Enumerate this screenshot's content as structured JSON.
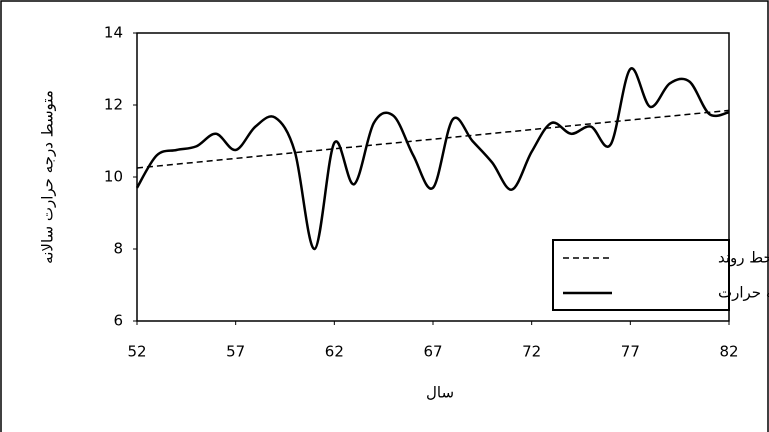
{
  "chart_data": {
    "type": "line",
    "x_label": "سال",
    "y_label": "متوسط درجه حرارت سالانه",
    "xlim": [
      52,
      82
    ],
    "ylim": [
      6,
      14
    ],
    "xticks": [
      52,
      57,
      62,
      67,
      72,
      77,
      82
    ],
    "yticks": [
      6,
      8,
      10,
      12,
      14
    ],
    "legend": "lower right",
    "series": [
      {
        "name": "خط روند",
        "color": "#000000",
        "style": "dashed",
        "x": [
          52,
          82
        ],
        "values": [
          10.25,
          11.85
        ]
      },
      {
        "name": "درجه حرارت",
        "color": "#000000",
        "style": "solid",
        "smooth": true,
        "x": [
          52,
          53,
          54,
          55,
          56,
          57,
          58,
          59,
          60,
          61,
          62,
          63,
          64,
          65,
          66,
          67,
          68,
          69,
          70,
          71,
          72,
          73,
          74,
          75,
          76,
          77,
          78,
          79,
          80,
          81,
          82
        ],
        "values": [
          9.7,
          10.6,
          10.75,
          10.85,
          11.2,
          10.75,
          11.4,
          11.65,
          10.7,
          8.0,
          10.95,
          9.8,
          11.5,
          11.7,
          10.6,
          9.7,
          11.6,
          11.0,
          10.4,
          9.65,
          10.7,
          11.5,
          11.2,
          11.4,
          10.9,
          13.0,
          11.95,
          12.6,
          12.65,
          11.75,
          11.8
        ]
      }
    ]
  }
}
